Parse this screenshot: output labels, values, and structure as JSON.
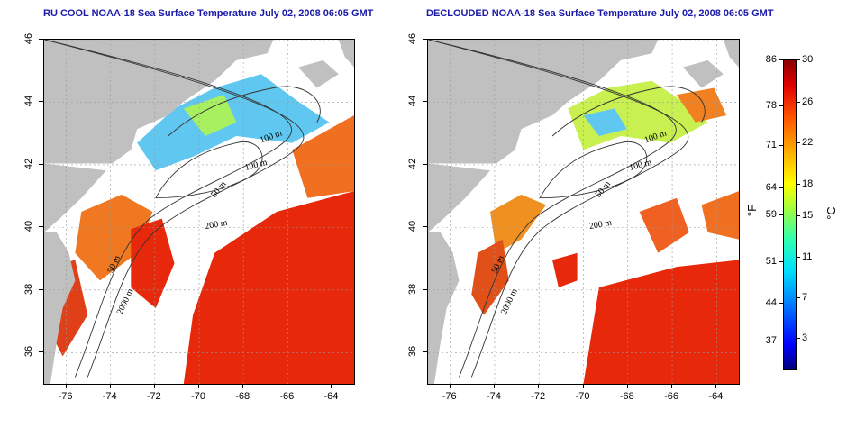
{
  "panels": [
    {
      "title": "RU COOL NOAA-18 Sea Surface Temperature July 02, 2008 06:05 GMT",
      "x_ticks": [
        "-76",
        "-74",
        "-72",
        "-70",
        "-68",
        "-66",
        "-64"
      ],
      "y_ticks": [
        "46",
        "44",
        "42",
        "40",
        "38",
        "36"
      ]
    },
    {
      "title": "DECLOUDED NOAA-18 Sea Surface Temperature July 02, 2008 06:05 GMT",
      "x_ticks": [
        "-76",
        "-74",
        "-72",
        "-70",
        "-68",
        "-66",
        "-64"
      ],
      "y_ticks": [
        "46",
        "44",
        "42",
        "40",
        "38",
        "36"
      ]
    }
  ],
  "contour_labels": [
    "100 m",
    "100 m",
    "50 m",
    "200 m",
    "50 m",
    "2000 m"
  ],
  "colorbar": {
    "fahrenheit_ticks": [
      "86",
      "78",
      "71",
      "64",
      "59",
      "51",
      "44",
      "37"
    ],
    "celsius_ticks": [
      "30",
      "26",
      "22",
      "18",
      "15",
      "11",
      "7",
      "3"
    ],
    "fahrenheit_unit": "°F",
    "celsius_unit": "°C"
  },
  "map": {
    "lon_range": [
      -77,
      -63
    ],
    "lat_range": [
      35,
      46
    ],
    "colors": {
      "land": "#c0c0c0",
      "cloud": "#ffffff",
      "warm": "#e8280a",
      "cool": "#60c8f0",
      "mid": "#f0a020"
    }
  }
}
